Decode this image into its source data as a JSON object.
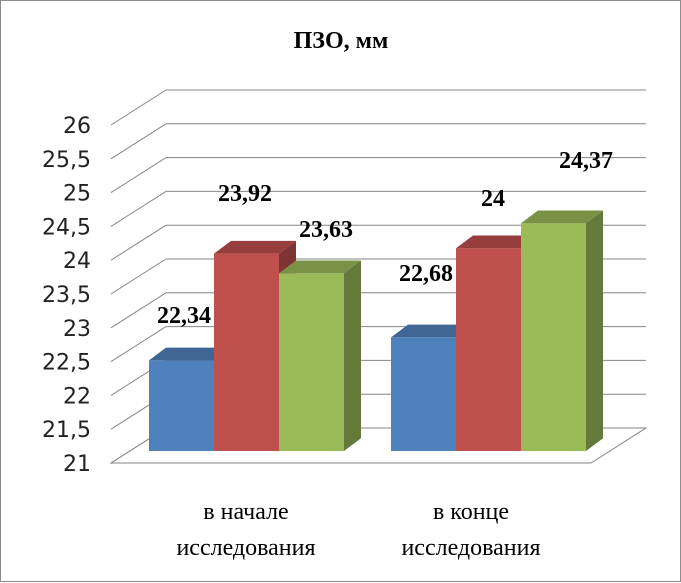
{
  "chart_data": {
    "type": "bar",
    "title": "ПЗО, мм",
    "categories": [
      [
        "в начале",
        "исследования"
      ],
      [
        "в конце",
        "исследования"
      ]
    ],
    "series": [
      {
        "values": [
          22.34,
          22.68
        ],
        "labels": [
          "22,34",
          "22,68"
        ],
        "color": "#4f81bd"
      },
      {
        "values": [
          23.92,
          24.0
        ],
        "labels": [
          "23,92",
          "24"
        ],
        "color": "#c0504d"
      },
      {
        "values": [
          23.63,
          24.37
        ],
        "labels": [
          "23,63",
          "24,37"
        ],
        "color": "#9bbb59"
      }
    ],
    "ylim": [
      21,
      26
    ],
    "yticks": [
      "21",
      "21,5",
      "22",
      "22,5",
      "23",
      "23,5",
      "24",
      "24,5",
      "25",
      "25,5",
      "26"
    ],
    "grid": true,
    "style": "3d-clustered-column"
  }
}
